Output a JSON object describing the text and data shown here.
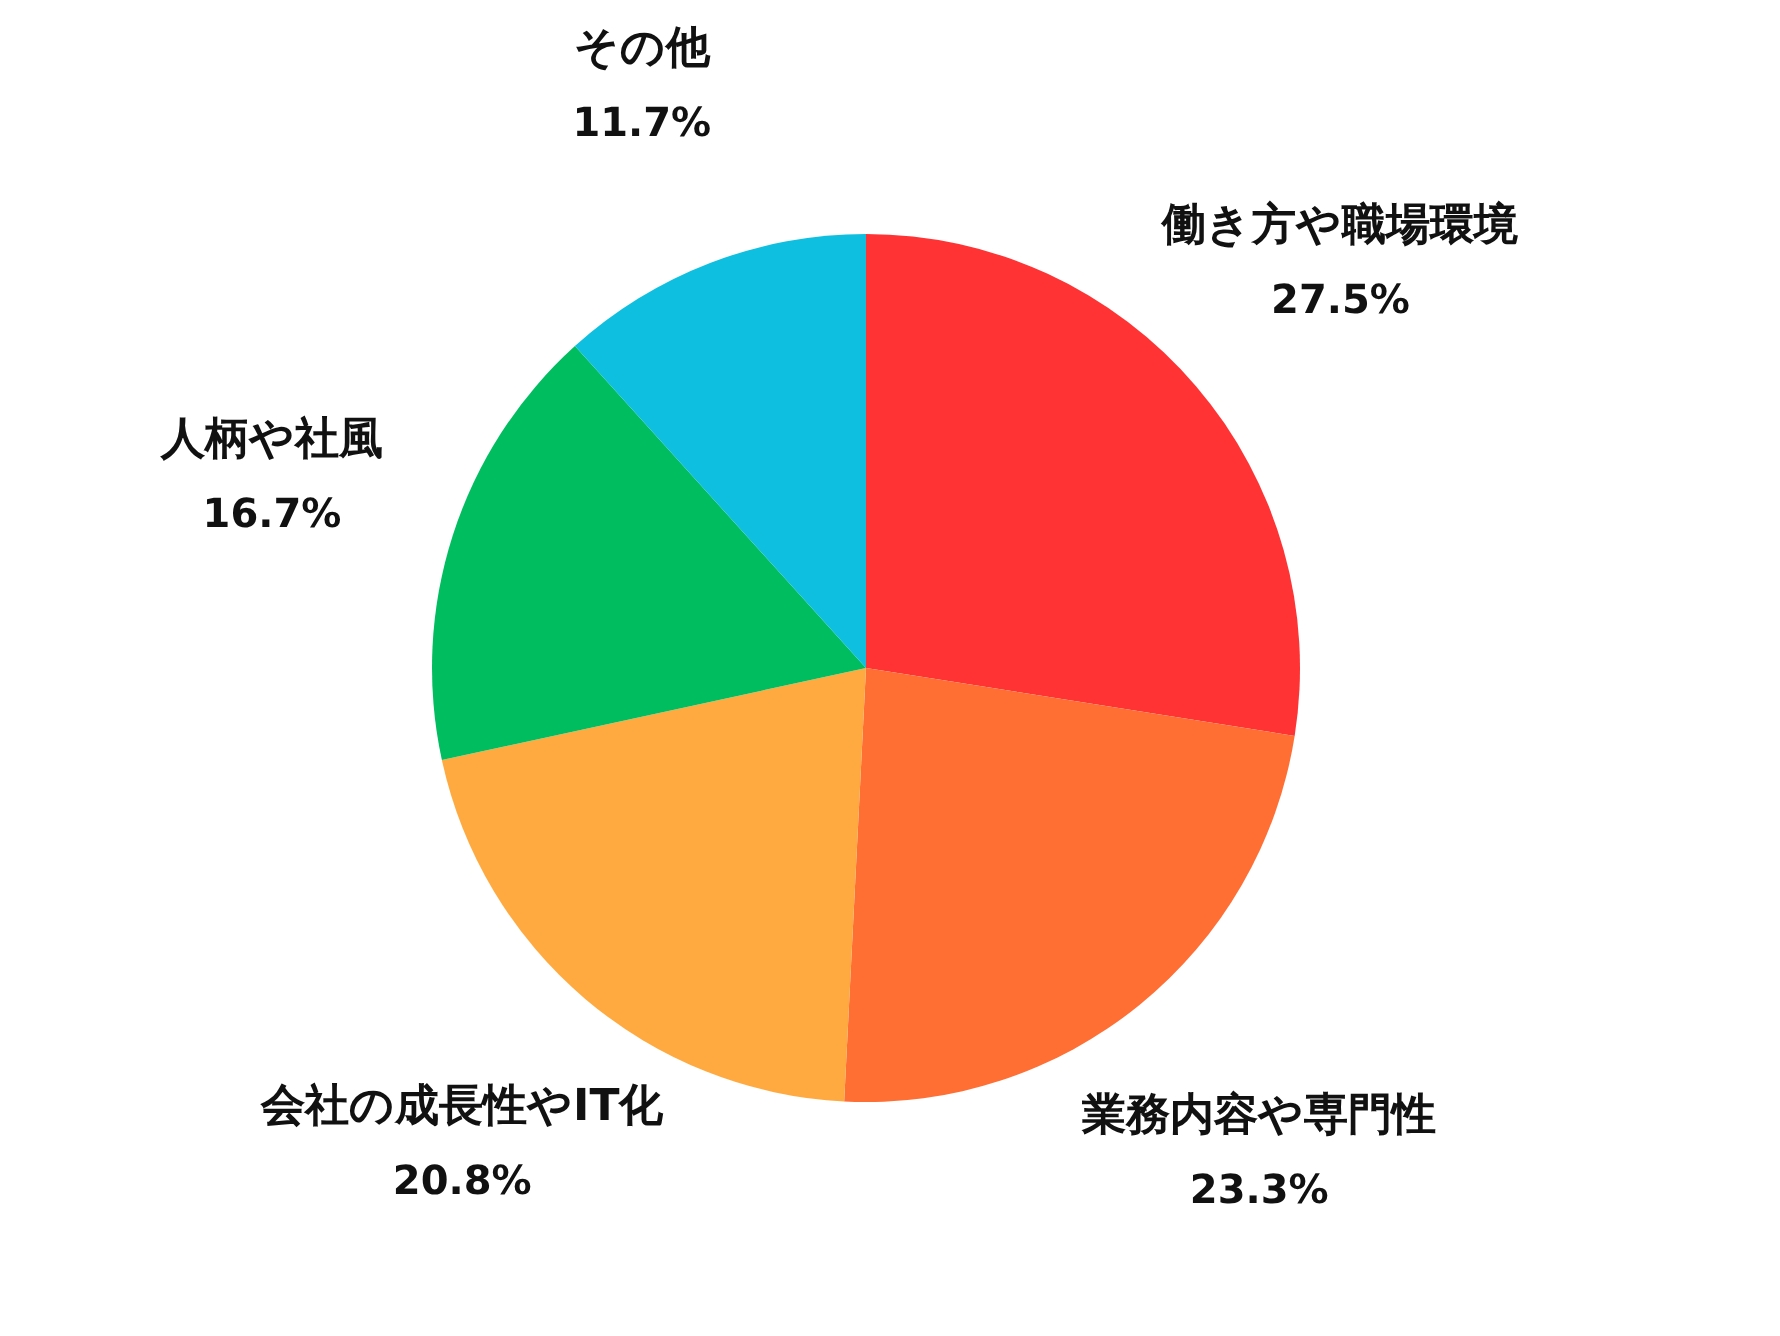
{
  "chart_data": {
    "type": "pie",
    "categories": [
      "働き方や職場環境",
      "業務内容や専門性",
      "会社の成長性やIT化",
      "人柄や社風",
      "その他"
    ],
    "values": [
      27.5,
      23.3,
      20.8,
      16.7,
      11.7
    ],
    "colors": [
      "#ff3333",
      "#ff6e33",
      "#ffaa40",
      "#00bd60",
      "#0fbfdf"
    ],
    "value_labels": [
      "27.5%",
      "23.3%",
      "20.8%",
      "16.7%",
      "11.7%"
    ]
  }
}
